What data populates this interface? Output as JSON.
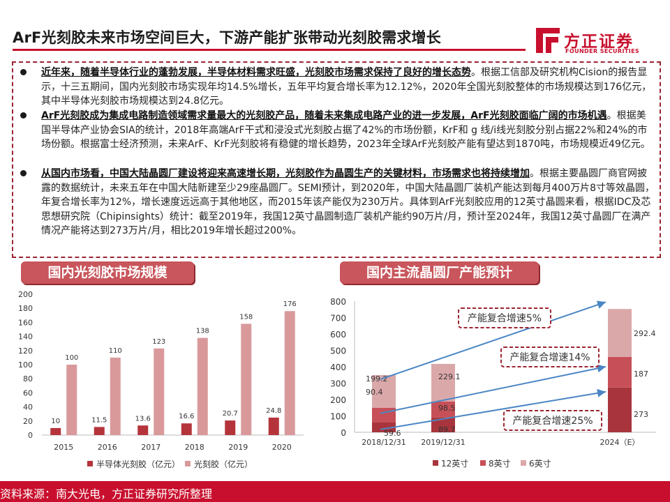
{
  "header": {
    "title": "ArF光刻胶未来市场空间巨大，下游产能扩张带动光刻胶需求增长",
    "logo_cn": "方正证券",
    "logo_en": "FOUNDER SECURITIES",
    "accent_color": "#c8102e"
  },
  "bullets": [
    {
      "lead": "近年来，随着半导体行业的蓬勃发展，半导体材料需求旺盛，光刻胶市场需求保持了良好的增长态势",
      "body": "。根据工信部及研究机构Cision的报告显示，十三五期间，国内光刻胶市场实现年均14.5%增长，五年平均复合增长率为12.12%，2020年全国光刻胶整体的市场规模达到176亿元，其中半导体光刻胶市场规模达到24.8亿元。"
    },
    {
      "lead": "ArF光刻胶成为集成电路制造领域需求量最大的光刻胶产品，随着未来集成电路产业的进一步发展，ArF光刻胶面临广阔的市场机遇",
      "body": "。根据美国半导体产业协会SIA的统计，2018年高端ArF干式和浸没式光刻胶占据了42%的市场份额，KrF和 g 线/i线光刻胶分别占据22%和24%的市场份额。根据富士经济预测，未来ArF、KrF光刻胶将有稳健的增长趋势，2023年全球ArF光刻胶产能有望达到1870吨，市场规模近49亿元。"
    },
    {
      "lead": "从国内市场看，中国大陆晶圆厂建设将迎来高速增长期，光刻胶作为晶圆生产的关键材料，市场需求也将持续增加",
      "body": "。根据主要晶圆厂商官网披露的数据统计，未来五年在中国大陆新建至少29座晶圆厂。SEMI预计，到2020年，中国大陆晶圆厂装机产能达到每月400万片8寸等效晶圆，年复合增长率为12%，增长速度远远高于其他地区，而2015年该产能仅为230万片。具体到ArF光刻胶应用的12英寸晶圆来看，根据IDC及芯思想研究院（Chipinsights）统计：截至2019年，我国12英寸晶圆制造厂装机产能约90万片/月，预计至2024年，我国12英寸晶圆厂在满产情况产能将达到273万片/月，相比2019年增长超过200%。"
    }
  ],
  "sections": {
    "left_title": "国内光刻胶市场规模",
    "right_title": "国内主流晶圆厂产能预计"
  },
  "chart_data": [
    {
      "type": "bar",
      "categories": [
        "2015",
        "2016",
        "2017",
        "2018",
        "2019",
        "2020"
      ],
      "series": [
        {
          "name": "半导体光刻胶（亿元）",
          "values": [
            10,
            11.5,
            13.6,
            16.6,
            20.7,
            24.8
          ],
          "color": "#b5343c"
        },
        {
          "name": "光刻胶（亿元）",
          "values": [
            100,
            110,
            123,
            138,
            158,
            176
          ],
          "color": "#d9999b"
        }
      ],
      "yticks": [
        0,
        20,
        40,
        60,
        80,
        100,
        120,
        140,
        160,
        180,
        200
      ],
      "ylim": [
        0,
        200
      ],
      "legend": "bottom"
    },
    {
      "type": "bar",
      "stacked": true,
      "categories": [
        "2018/12/31",
        "2019/12/31",
        "2024（E）"
      ],
      "series": [
        {
          "name": "12英寸",
          "values": [
            59.6,
            89.7,
            273
          ],
          "color": "#a8353d"
        },
        {
          "name": "8英寸",
          "values": [
            90.4,
            98.5,
            187
          ],
          "color": "#c75058"
        },
        {
          "name": "6英寸",
          "values": [
            199.2,
            229.1,
            292.4
          ],
          "color": "#dba8aa"
        }
      ],
      "yticks": [
        0,
        100,
        200,
        300,
        400,
        500,
        600,
        700,
        800
      ],
      "ylim": [
        0,
        800
      ],
      "legend": "bottom",
      "annotations": [
        "产能复合增速5%",
        "产能复合增速14%",
        "产能复合增速25%"
      ]
    }
  ],
  "footer": {
    "source": "资料来源：南大光电，方正证券研究所整理"
  }
}
